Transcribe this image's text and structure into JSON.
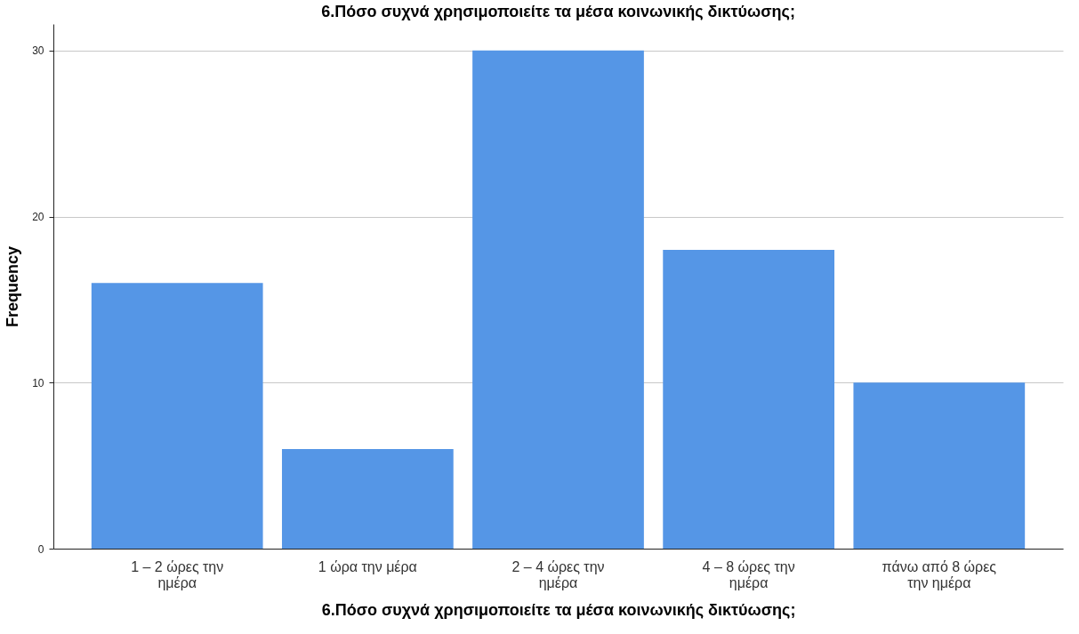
{
  "chart_data": {
    "type": "bar",
    "title": "6.Πόσο συχνά χρησιμοποιείτε τα μέσα κοινωνικής δικτύωσης;",
    "xlabel": "6.Πόσο συχνά χρησιμοποιείτε τα μέσα κοινωνικής δικτύωσης;",
    "ylabel": "Frequency",
    "categories": [
      "1 – 2 ώρες την ημέρα",
      "1 ώρα την μέρα",
      "2 – 4 ώρες την ημέρα",
      "4 – 8 ώρες την ημέρα",
      "πάνω από 8 ώρες την ημέρα"
    ],
    "values": [
      16,
      6,
      30,
      18,
      10
    ],
    "color": "#5596e6",
    "ylim": [
      0,
      31.6
    ],
    "yticks": [
      0,
      10,
      20,
      30
    ],
    "grid": "y"
  }
}
